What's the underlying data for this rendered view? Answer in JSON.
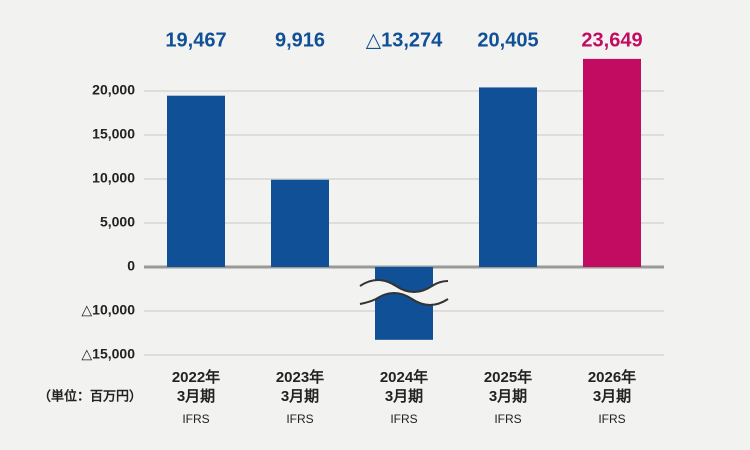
{
  "chart_data": {
    "type": "bar",
    "categories": [
      "2022年",
      "2023年",
      "2024年",
      "2025年",
      "2026年"
    ],
    "period_labels": [
      "3月期",
      "3月期",
      "3月期",
      "3月期",
      "3月期"
    ],
    "standard_labels": [
      "IFRS",
      "IFRS",
      "IFRS",
      "IFRS",
      "IFRS"
    ],
    "values": [
      19467,
      9916,
      -13274,
      20405,
      23649
    ],
    "value_labels": [
      "19,467",
      "9,916",
      "△13,274",
      "20,405",
      "23,649"
    ],
    "colors": [
      "#0f5096",
      "#0f5096",
      "#0f5096",
      "#0f5096",
      "#c20c62"
    ],
    "ylim": [
      -15000,
      25000
    ],
    "y_break": [
      -5000,
      0
    ],
    "yticks": [
      {
        "value": 20000,
        "label": "20,000"
      },
      {
        "value": 15000,
        "label": "15,000"
      },
      {
        "value": 10000,
        "label": "10,000"
      },
      {
        "value": 5000,
        "label": "5,000"
      },
      0,
      {
        "value": -10000,
        "label": "△10,000"
      },
      {
        "value": -15000,
        "label": "△15,000"
      }
    ],
    "grid": true,
    "unit_label": "（単位：百万円）"
  }
}
